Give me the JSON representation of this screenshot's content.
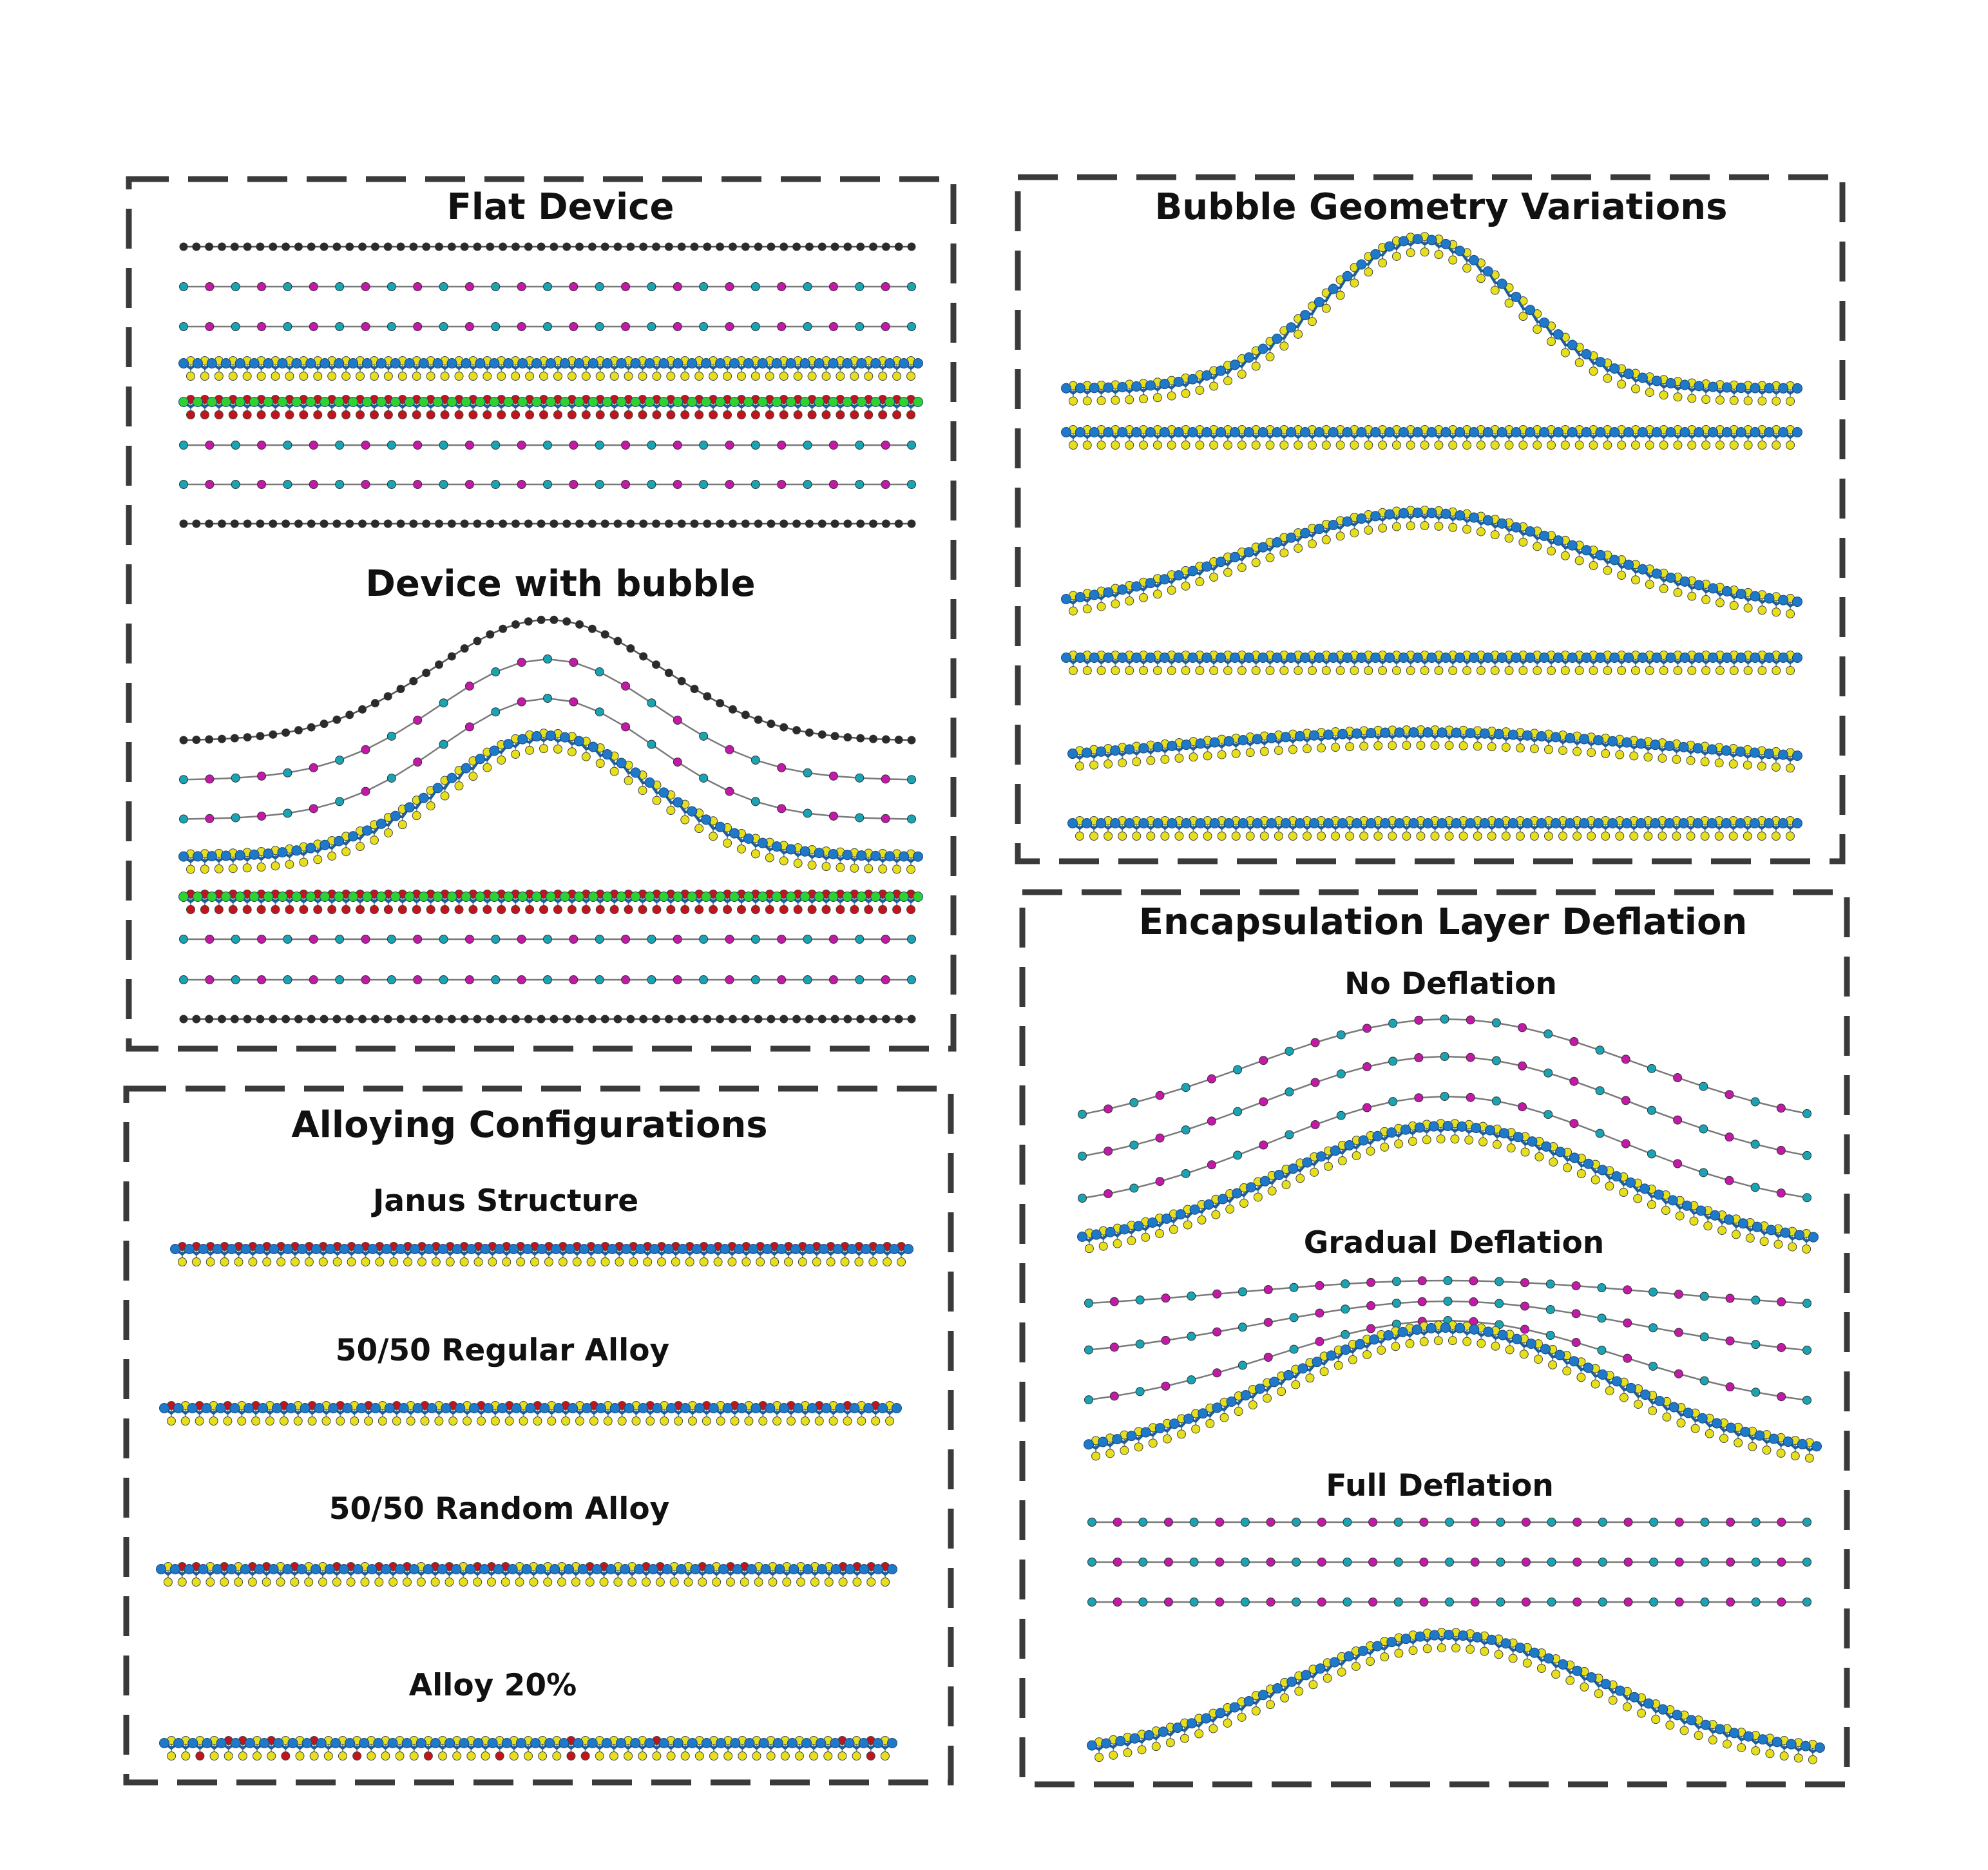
{
  "colors": {
    "graphene_carbon": "#2b2b2b",
    "hbn_boron": "#c21aa6",
    "hbn_nitrogen": "#1aa3b3",
    "tmd_metal": "#1f78c8",
    "tmd_chalcogen_s": "#e6df1c",
    "tmd_chalcogen_se": "#c2141b",
    "substrate_green": "#2fd12f",
    "border": "#3a3a3a"
  },
  "panels": {
    "devices": {
      "flat_title": "Flat Device",
      "bubble_title": "Device with bubble",
      "flat_layers": [
        "graphene",
        "hbn",
        "hbn",
        "tmd",
        "janus-green",
        "hbn",
        "hbn",
        "graphene"
      ],
      "bubble_layers": [
        "graphene-bubble",
        "hbn-bubble",
        "hbn-bubble",
        "tmd-bubble",
        "janus-green",
        "hbn",
        "hbn",
        "graphene"
      ]
    },
    "geometry": {
      "title": "Bubble Geometry Variations",
      "variations": [
        {
          "shape": "tall-narrow bubble over flat TMD"
        },
        {
          "shape": "wide medium bubble over flat TMD"
        },
        {
          "shape": "shallow wide bubble over flat TMD"
        }
      ]
    },
    "alloying": {
      "title": "Alloying Configurations",
      "configs": [
        {
          "label": "Janus Structure",
          "pattern": "janus"
        },
        {
          "label": "50/50 Regular Alloy",
          "pattern": "regular"
        },
        {
          "label": "50/50 Random Alloy",
          "pattern": "random"
        },
        {
          "label": "Alloy 20%",
          "pattern": "alloy20"
        }
      ]
    },
    "deflation": {
      "title": "Encapsulation Layer Deflation",
      "cases": [
        {
          "label": "No Deflation"
        },
        {
          "label": "Gradual Deflation"
        },
        {
          "label": "Full Deflation"
        }
      ]
    }
  }
}
